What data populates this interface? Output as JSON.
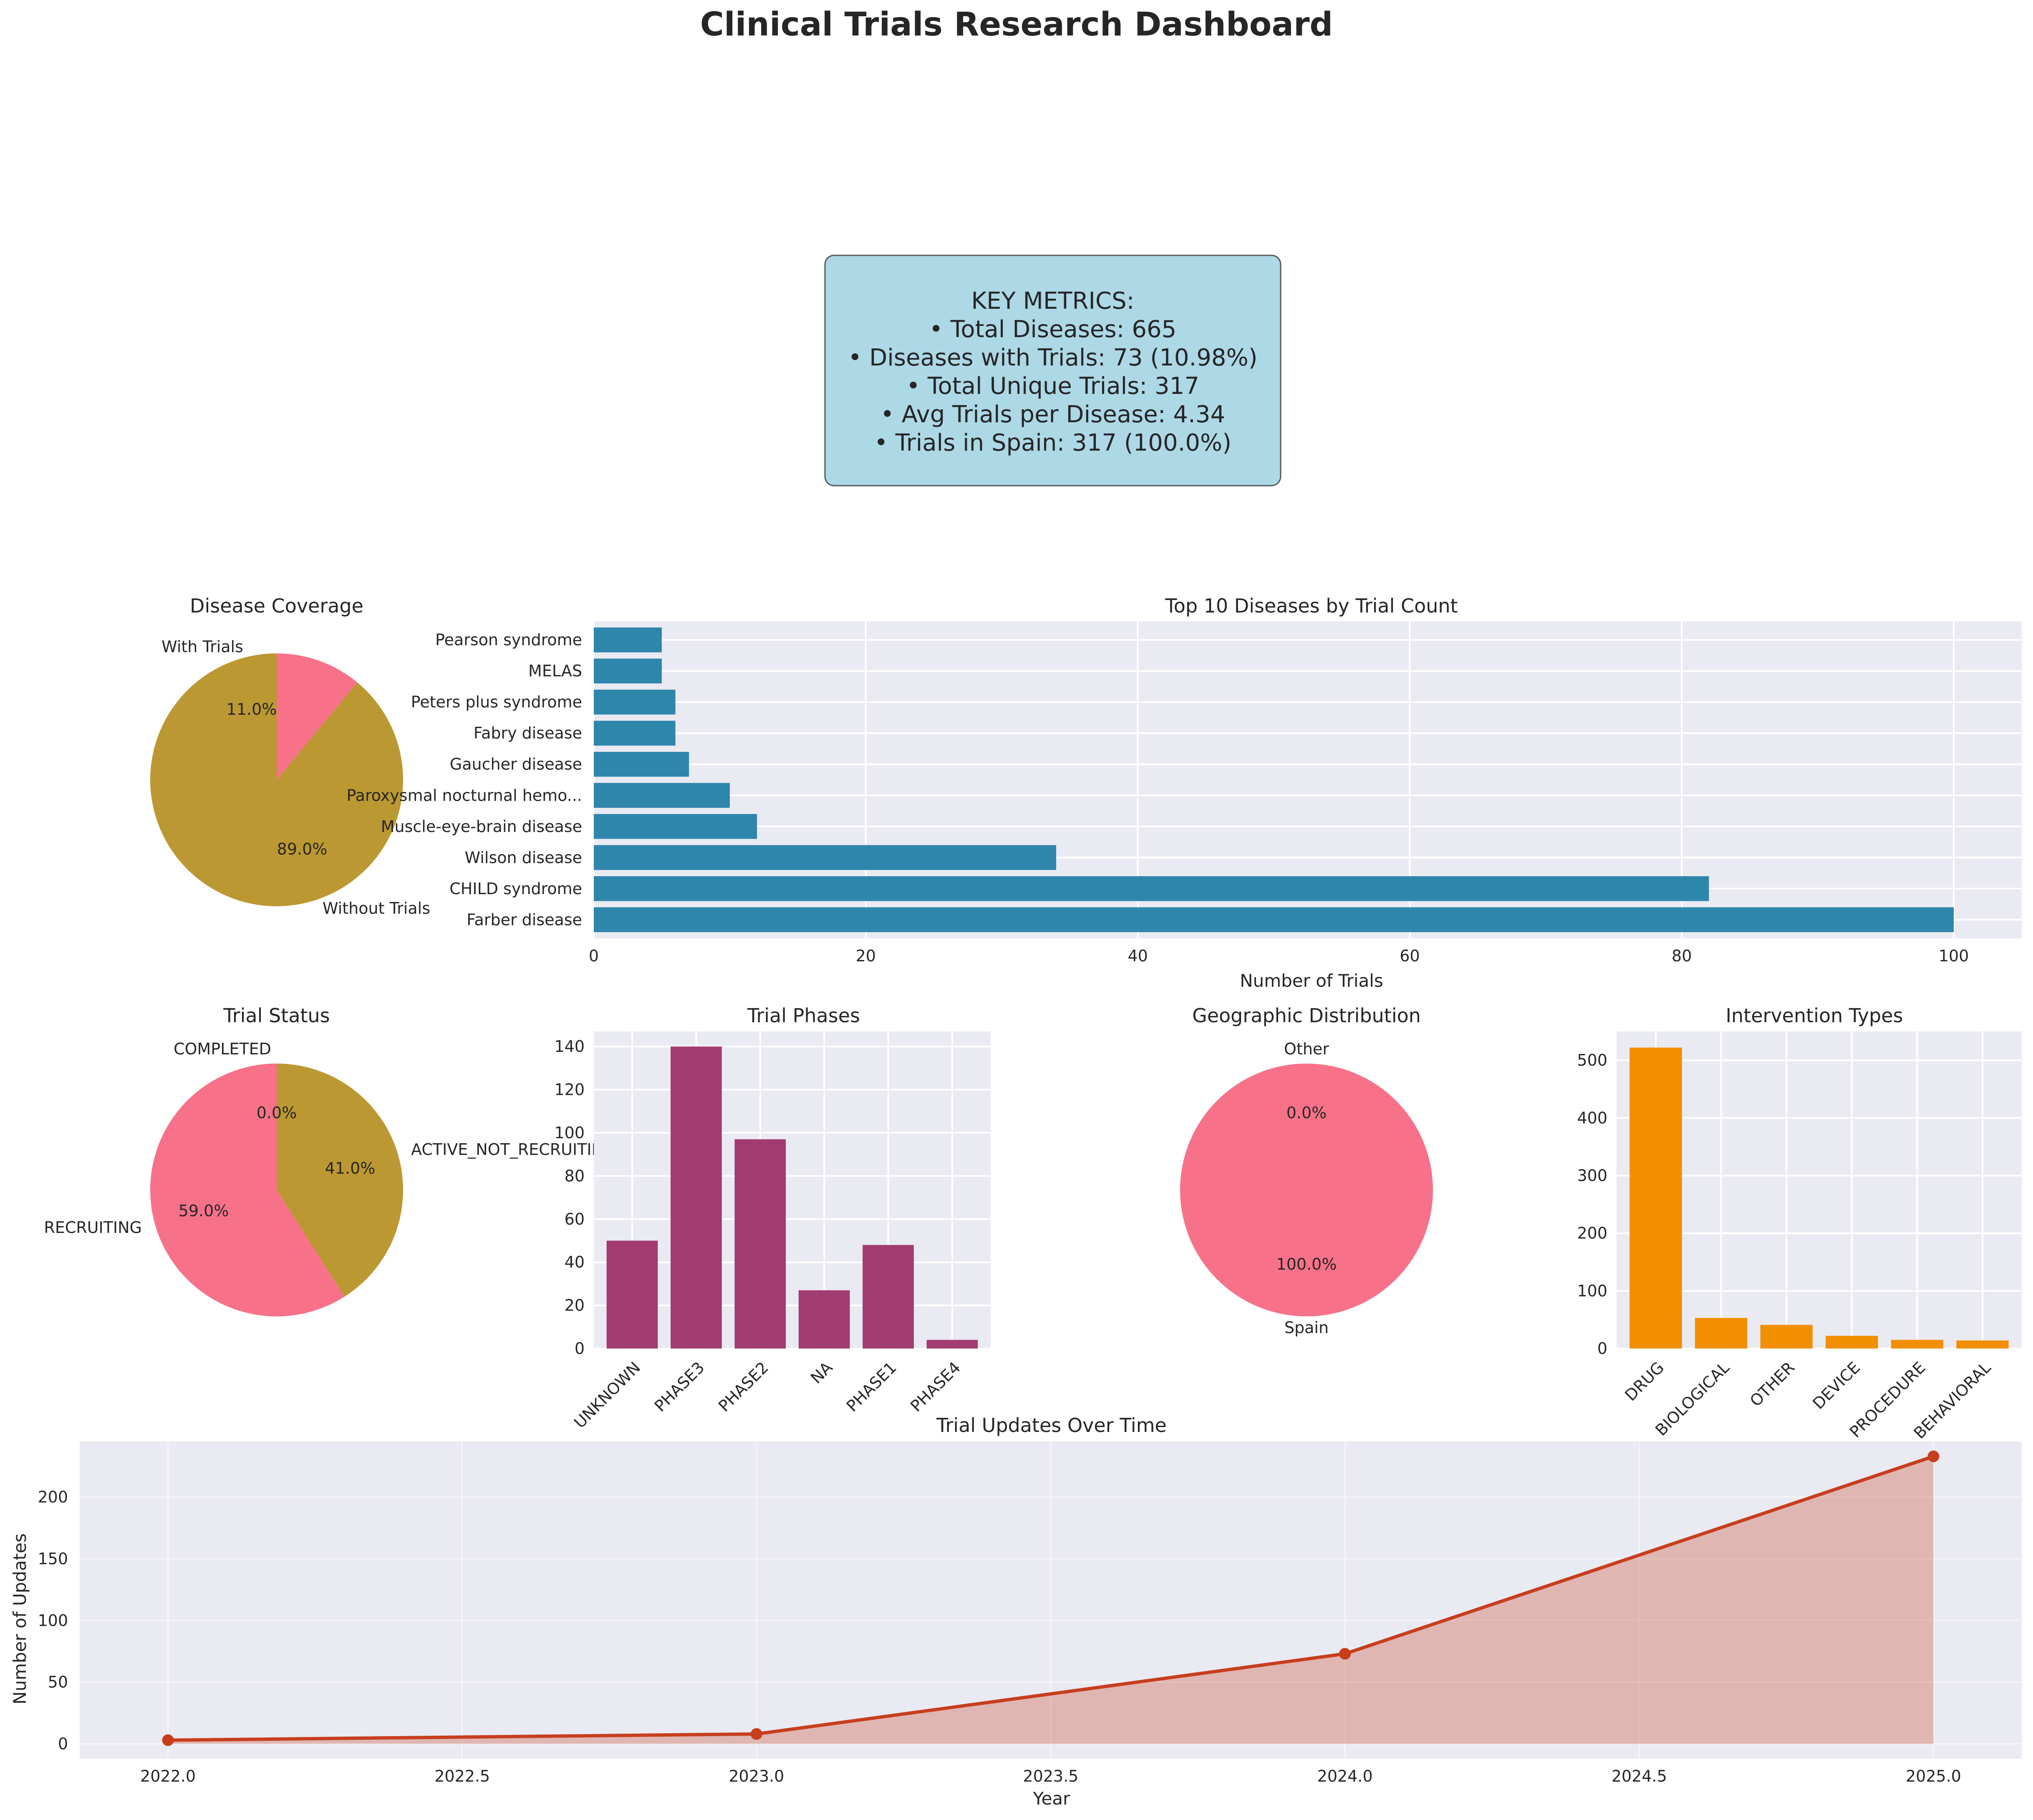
{
  "title": "Clinical Trials Research Dashboard",
  "key_metrics": {
    "header": "KEY METRICS:",
    "lines": [
      "• Total Diseases: 665",
      "• Diseases with Trials: 73 (10.98%)",
      "• Total Unique Trials: 317",
      "• Avg Trials per Disease: 4.34",
      "• Trials in Spain: 317 (100.0%)"
    ],
    "box_color": "#add8e6"
  },
  "colors": {
    "pie_pink": "#f77189",
    "pie_olive": "#bb9832",
    "bar_blue": "#2e86ab",
    "bar_purple": "#a23b72",
    "bar_orange": "#f18f01",
    "line_red": "#c73e1d",
    "plot_bg": "#eaeaf2"
  },
  "chart_data": [
    {
      "id": "disease-coverage",
      "type": "pie",
      "title": "Disease Coverage",
      "labels": [
        "With Trials",
        "Without Trials"
      ],
      "values": [
        11.0,
        89.0
      ],
      "pct_labels": [
        "11.0%",
        "89.0%"
      ],
      "colors": [
        "#f77189",
        "#bb9832"
      ]
    },
    {
      "id": "top-diseases",
      "type": "bar",
      "orientation": "horizontal",
      "title": "Top 10 Diseases by Trial Count",
      "xlabel": "Number of Trials",
      "ylabel": "",
      "categories": [
        "Farber disease",
        "CHILD syndrome",
        "Wilson disease",
        "Muscle-eye-brain disease",
        "Paroxysmal nocturnal hemo...",
        "Gaucher disease",
        "Fabry disease",
        "Peters plus syndrome",
        "MELAS",
        "Pearson syndrome"
      ],
      "values": [
        100,
        82,
        34,
        12,
        10,
        7,
        6,
        6,
        5,
        5
      ],
      "xlim": [
        0,
        105
      ],
      "xticks": [
        0,
        20,
        40,
        60,
        80,
        100
      ],
      "grid": true,
      "color": "#2e86ab"
    },
    {
      "id": "trial-status",
      "type": "pie",
      "title": "Trial Status",
      "labels": [
        "COMPLETED",
        "ACTIVE_NOT_RECRUITING",
        "RECRUITING"
      ],
      "values": [
        0.0,
        41.0,
        59.0
      ],
      "pct_labels": [
        "0.0%",
        "41.0%",
        "59.0%"
      ],
      "colors": [
        "#f77189",
        "#bb9832",
        "#f77189"
      ]
    },
    {
      "id": "trial-phases",
      "type": "bar",
      "title": "Trial Phases",
      "xlabel": "",
      "ylabel": "",
      "categories": [
        "UNKNOWN",
        "PHASE3",
        "PHASE2",
        "NA",
        "PHASE1",
        "PHASE4"
      ],
      "values": [
        50,
        140,
        97,
        27,
        48,
        4
      ],
      "ylim": [
        0,
        147
      ],
      "yticks": [
        0,
        20,
        40,
        60,
        80,
        100,
        120,
        140
      ],
      "grid": true,
      "color": "#a23b72"
    },
    {
      "id": "geographic-distribution",
      "type": "pie",
      "title": "Geographic Distribution",
      "labels": [
        "Other",
        "Spain"
      ],
      "values": [
        0.0,
        100.0
      ],
      "pct_labels": [
        "0.0%",
        "100.0%"
      ],
      "colors": [
        "#bb9832",
        "#f77189"
      ]
    },
    {
      "id": "intervention-types",
      "type": "bar",
      "title": "Intervention Types",
      "xlabel": "",
      "ylabel": "",
      "categories": [
        "DRUG",
        "BIOLOGICAL",
        "OTHER",
        "DEVICE",
        "PROCEDURE",
        "BEHAVIORAL"
      ],
      "values": [
        522,
        53,
        41,
        22,
        15,
        14
      ],
      "ylim": [
        0,
        550
      ],
      "yticks": [
        0,
        100,
        200,
        300,
        400,
        500
      ],
      "grid": true,
      "color": "#f18f01"
    },
    {
      "id": "trial-updates",
      "type": "area",
      "title": "Trial Updates Over Time",
      "xlabel": "Year",
      "ylabel": "Number of Updates",
      "x": [
        2022,
        2023,
        2024,
        2025
      ],
      "y": [
        3,
        8,
        73,
        233
      ],
      "xlim": [
        2021.85,
        2025.15
      ],
      "ylim": [
        -12,
        245
      ],
      "xticks": [
        2022.0,
        2022.5,
        2023.0,
        2023.5,
        2024.0,
        2024.5,
        2025.0
      ],
      "xtick_labels": [
        "2022.0",
        "2022.5",
        "2023.0",
        "2023.5",
        "2024.0",
        "2024.5",
        "2025.0"
      ],
      "yticks": [
        0,
        50,
        100,
        150,
        200
      ],
      "grid": true,
      "color": "#c73e1d"
    }
  ]
}
